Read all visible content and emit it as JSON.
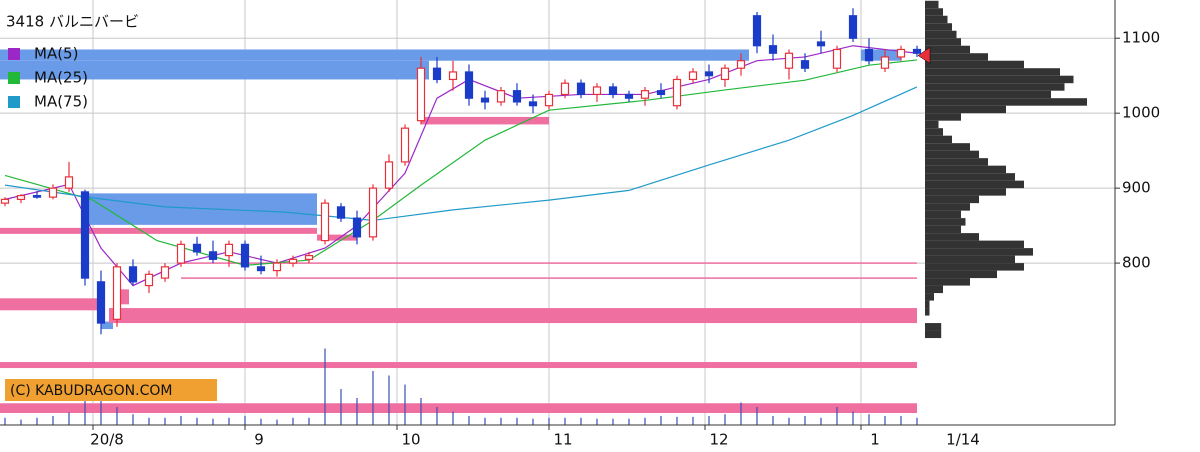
{
  "chart_data": {
    "type": "candlestick",
    "title": "3418 バルニバービ",
    "copyright": "(C) KABUDRAGON.COM",
    "xlim": [
      -0.625,
      138.75
    ],
    "ylim": [
      584,
      1151
    ],
    "xticks": [
      {
        "value": 11,
        "label": "20/8"
      },
      {
        "value": 30,
        "label": "9"
      },
      {
        "value": 49,
        "label": "10"
      },
      {
        "value": 68,
        "label": "11"
      },
      {
        "value": 87.5,
        "label": "12"
      },
      {
        "value": 107,
        "label": "1"
      }
    ],
    "last_date": {
      "value": 118,
      "label": "1/14"
    },
    "yticks": [
      800,
      900,
      1000,
      1100
    ],
    "grid": true,
    "up_color": "#e8303a",
    "down_color": "#1a3cc8",
    "candles": {
      "x": [
        0,
        2,
        4,
        6,
        8,
        10,
        12,
        14,
        16,
        18,
        20,
        22,
        24,
        26,
        28,
        30,
        32,
        34,
        36,
        38,
        40,
        42,
        44,
        46,
        48,
        50,
        52,
        54,
        56,
        58,
        60,
        62,
        64,
        66,
        68,
        70,
        72,
        74,
        76,
        78,
        80,
        82,
        84,
        86,
        88,
        90,
        92,
        94,
        96,
        98,
        100,
        102,
        104,
        106,
        108,
        110,
        112,
        114
      ],
      "open": [
        880,
        885,
        890,
        888,
        900,
        895,
        775,
        725,
        795,
        770,
        780,
        800,
        825,
        815,
        810,
        825,
        795,
        790,
        800,
        805,
        830,
        875,
        860,
        835,
        900,
        935,
        990,
        1060,
        1045,
        1055,
        1020,
        1015,
        1030,
        1015,
        1010,
        1025,
        1040,
        1025,
        1035,
        1025,
        1020,
        1030,
        1010,
        1045,
        1055,
        1045,
        1060,
        1130,
        1090,
        1060,
        1070,
        1095,
        1060,
        1130,
        1085,
        1060,
        1075,
        1085
      ],
      "high": [
        888,
        892,
        896,
        905,
        935,
        898,
        790,
        800,
        805,
        790,
        800,
        830,
        835,
        830,
        830,
        830,
        810,
        805,
        810,
        815,
        885,
        880,
        870,
        905,
        945,
        985,
        1075,
        1075,
        1070,
        1065,
        1030,
        1035,
        1040,
        1025,
        1030,
        1045,
        1045,
        1040,
        1040,
        1030,
        1035,
        1040,
        1050,
        1060,
        1065,
        1065,
        1080,
        1135,
        1105,
        1085,
        1080,
        1110,
        1090,
        1140,
        1100,
        1085,
        1090,
        1090
      ],
      "low": [
        876,
        880,
        886,
        885,
        895,
        770,
        705,
        715,
        770,
        760,
        775,
        795,
        810,
        800,
        795,
        790,
        785,
        782,
        795,
        800,
        825,
        855,
        825,
        830,
        895,
        930,
        985,
        1040,
        1030,
        1010,
        1005,
        1010,
        1010,
        1000,
        1005,
        1020,
        1020,
        1015,
        1020,
        1015,
        1010,
        1020,
        1005,
        1040,
        1040,
        1035,
        1050,
        1080,
        1070,
        1045,
        1055,
        1080,
        1055,
        1095,
        1065,
        1055,
        1070,
        1075
      ],
      "close": [
        885,
        890,
        888,
        900,
        915,
        780,
        720,
        795,
        775,
        785,
        795,
        825,
        815,
        805,
        825,
        795,
        790,
        800,
        805,
        810,
        880,
        860,
        835,
        900,
        935,
        980,
        1060,
        1045,
        1055,
        1020,
        1015,
        1030,
        1015,
        1010,
        1025,
        1040,
        1025,
        1035,
        1025,
        1020,
        1030,
        1025,
        1045,
        1055,
        1050,
        1060,
        1070,
        1090,
        1080,
        1080,
        1060,
        1090,
        1085,
        1100,
        1070,
        1075,
        1085,
        1080
      ],
      "volume": [
        8,
        6,
        8,
        10,
        14,
        40,
        35,
        20,
        12,
        8,
        8,
        10,
        8,
        7,
        8,
        10,
        7,
        6,
        8,
        8,
        85,
        40,
        30,
        60,
        55,
        45,
        30,
        20,
        15,
        10,
        8,
        8,
        8,
        7,
        8,
        8,
        8,
        7,
        7,
        7,
        8,
        10,
        9,
        9,
        10,
        12,
        25,
        20,
        10,
        8,
        10,
        8,
        20,
        15,
        12,
        10,
        10,
        8
      ]
    },
    "vlim": [
      0,
      100
    ],
    "volume_color": "#3a4cb8",
    "series": [
      {
        "name": "MA(5)",
        "color": "#9b27c7",
        "x": [
          0,
          8,
          12,
          16,
          22,
          28,
          34,
          40,
          44,
          50,
          54,
          58,
          64,
          72,
          80,
          88,
          94,
          100,
          106,
          114
        ],
        "values": [
          885,
          905,
          820,
          770,
          800,
          815,
          800,
          820,
          850,
          920,
          1020,
          1045,
          1020,
          1025,
          1025,
          1045,
          1070,
          1075,
          1090,
          1080
        ]
      },
      {
        "name": "MA(25)",
        "color": "#22b83a",
        "x": [
          0,
          11,
          19,
          30,
          38,
          46,
          52,
          60,
          68,
          80,
          90,
          100,
          108,
          114
        ],
        "values": [
          917,
          884,
          830,
          797,
          804,
          857,
          904,
          964,
          1004,
          1017,
          1031,
          1044,
          1064,
          1071
        ]
      },
      {
        "name": "MA(75)",
        "color": "#1f9ac9",
        "x": [
          0,
          11,
          20,
          35,
          46,
          56,
          68,
          78,
          88,
          98,
          106,
          114
        ],
        "values": [
          904,
          887,
          875,
          868,
          857,
          871,
          884,
          897,
          931,
          964,
          997,
          1035
        ]
      }
    ],
    "bands": [
      {
        "color": "#6a9be8",
        "from": -0.625,
        "to": 93,
        "low": 1070,
        "high": 1085
      },
      {
        "color": "#6a9be8",
        "from": -0.625,
        "to": 53,
        "low": 1045,
        "high": 1070
      },
      {
        "color": "#6a9be8",
        "from": 107,
        "to": 112,
        "low": 1070,
        "high": 1085
      },
      {
        "color": "#6a9be8",
        "from": 10,
        "to": 39,
        "low": 851,
        "high": 893
      },
      {
        "color": "#6a9be8",
        "from": 12,
        "to": 13.5,
        "low": 712,
        "high": 722
      },
      {
        "color": "#ee6fa0",
        "from": 52,
        "to": 68,
        "low": 985,
        "high": 995
      },
      {
        "color": "#ee6fa0",
        "from": -0.625,
        "to": 39,
        "low": 839,
        "high": 847
      },
      {
        "color": "#ee6fa0",
        "from": 39,
        "to": 44,
        "low": 830,
        "high": 838
      },
      {
        "color": "#ee6fa0",
        "from": 22,
        "to": 114,
        "low": 799,
        "high": 801
      },
      {
        "color": "#ee6fa0",
        "from": 22,
        "to": 114,
        "low": 779,
        "high": 781
      },
      {
        "color": "#ee6fa0",
        "from": -0.625,
        "to": 12,
        "low": 737,
        "high": 753
      },
      {
        "color": "#ee6fa0",
        "from": 14,
        "to": 15.5,
        "low": 745,
        "high": 765
      },
      {
        "color": "#ee6fa0",
        "from": 13,
        "to": 114,
        "low": 720,
        "high": 740
      },
      {
        "color": "#ee6fa0",
        "from": -0.625,
        "to": 114,
        "low": 660,
        "high": 668
      },
      {
        "color": "#ee6fa0",
        "from": -0.625,
        "to": 114,
        "low": 600,
        "high": 613
      }
    ],
    "profile": {
      "color": "#333333",
      "plim": [
        0,
        200
      ],
      "prices": [
        1145,
        1135,
        1125,
        1115,
        1105,
        1095,
        1085,
        1075,
        1065,
        1055,
        1045,
        1035,
        1025,
        1015,
        1005,
        995,
        985,
        975,
        965,
        955,
        945,
        935,
        925,
        915,
        905,
        895,
        885,
        875,
        865,
        855,
        845,
        835,
        825,
        815,
        805,
        795,
        785,
        775,
        765,
        755,
        745,
        735,
        725,
        715,
        705
      ],
      "values": [
        15,
        20,
        25,
        30,
        35,
        40,
        50,
        70,
        110,
        150,
        165,
        155,
        140,
        180,
        90,
        40,
        15,
        20,
        30,
        50,
        60,
        70,
        90,
        100,
        110,
        90,
        60,
        50,
        40,
        45,
        40,
        60,
        110,
        120,
        100,
        110,
        80,
        50,
        20,
        10,
        5,
        5,
        0,
        18,
        18
      ]
    },
    "last_price": 1077,
    "last_price_color": "#e8303a"
  }
}
